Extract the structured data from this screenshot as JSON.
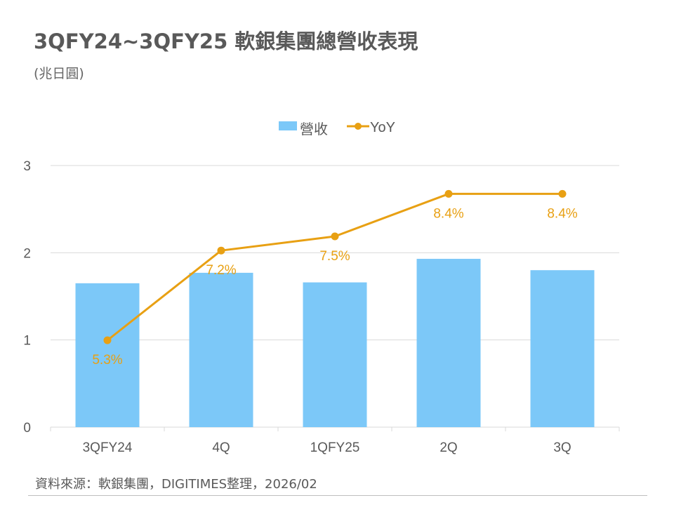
{
  "header": {
    "title": "3QFY24~3QFY25 軟銀集團總營收表現",
    "unit": "(兆日圓)"
  },
  "footer": {
    "source": "資料來源：軟銀集團，DIGITIMES整理，2026/02"
  },
  "colors": {
    "bar": "#7CC8F8",
    "line": "#E8A013",
    "grid": "#d9d9d9",
    "axis_text": "#595959"
  },
  "chart_data": {
    "type": "bar",
    "title": "3QFY24~3QFY25 軟銀集團總營收表現",
    "ylabel": "兆日圓",
    "categories": [
      "3QFY24",
      "4Q",
      "1QFY25",
      "2Q",
      "3Q"
    ],
    "ylim": [
      0,
      3
    ],
    "yticks": [
      "0",
      "1",
      "2",
      "3"
    ],
    "grid": true,
    "legend_position": "top-center",
    "series": [
      {
        "name": "營收",
        "type": "bar",
        "axis": "primary",
        "values": [
          1.65,
          1.77,
          1.66,
          1.93,
          1.8
        ]
      },
      {
        "name": "YoY",
        "type": "line",
        "axis": "secondary",
        "values": [
          5.3,
          7.2,
          7.5,
          8.4,
          8.4
        ],
        "labels": [
          "5.3%",
          "7.2%",
          "7.5%",
          "8.4%",
          "8.4%"
        ]
      }
    ],
    "secondary_ylim": [
      3.46,
      9.0
    ]
  }
}
